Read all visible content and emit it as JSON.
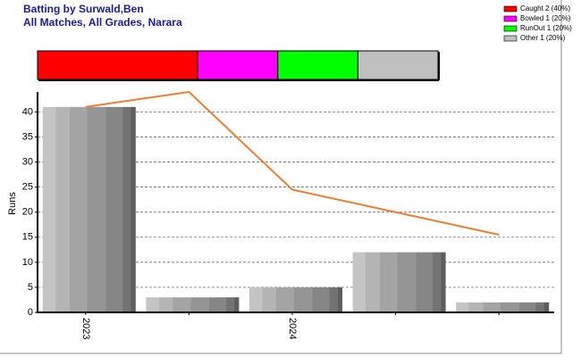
{
  "chart_data": [
    {
      "type": "stacked-bar",
      "title": "Batting by Surwald,Ben",
      "subtitle": "All Matches, All Grades, Narara",
      "series": [
        {
          "name": "Caught 2 (40%)",
          "color": "#ff0000",
          "values": [
            40
          ]
        },
        {
          "name": "Bowled 1 (20%)",
          "color": "#ff00ff",
          "values": [
            20
          ]
        },
        {
          "name": "RunOut 1 (20%)",
          "color": "#00ff00",
          "values": [
            20
          ]
        },
        {
          "name": "Other 1 (20%)",
          "color": "#c0c0c0",
          "values": [
            20
          ]
        }
      ]
    },
    {
      "type": "bar",
      "y_label": "Runs",
      "categories": [
        "2023",
        null,
        "2024",
        null,
        null
      ],
      "series": [
        {
          "type": "bar",
          "values": [
            41,
            3,
            5,
            12,
            2
          ]
        },
        {
          "type": "line",
          "color": "#ed7d31",
          "values": [
            41,
            44,
            24.5,
            20,
            15.5
          ]
        }
      ],
      "ylim": [
        0,
        44
      ],
      "yticks": [
        0,
        5,
        10,
        15,
        20,
        25,
        30,
        35,
        40
      ],
      "grid": true
    }
  ]
}
